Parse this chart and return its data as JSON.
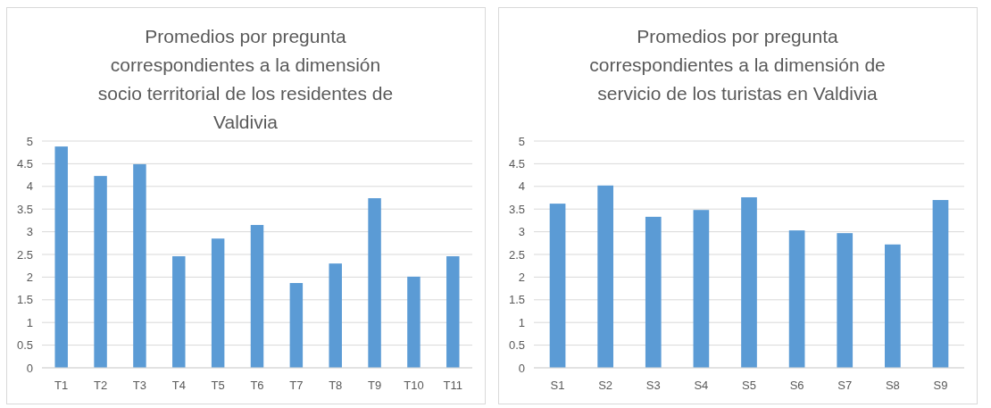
{
  "chart_data": [
    {
      "type": "bar",
      "title": "Promedios por pregunta correspondientes a la dimensión socio territorial de los residentes de Valdivia",
      "categories": [
        "T1",
        "T2",
        "T3",
        "T4",
        "T5",
        "T6",
        "T7",
        "T8",
        "T9",
        "T10",
        "T11"
      ],
      "values": [
        4.88,
        4.23,
        4.49,
        2.46,
        2.85,
        3.15,
        1.87,
        2.3,
        3.74,
        2.01,
        2.46
      ],
      "color": "#5b9bd5",
      "ylim": [
        0,
        5
      ],
      "yticks": [
        0,
        0.5,
        1,
        1.5,
        2,
        2.5,
        3,
        3.5,
        4,
        4.5,
        5
      ],
      "grid": "y"
    },
    {
      "type": "bar",
      "title": "Promedios por pregunta correspondientes a la dimensión de servicio de los turistas en Valdivia",
      "categories": [
        "S1",
        "S2",
        "S3",
        "S4",
        "S5",
        "S6",
        "S7",
        "S8",
        "S9"
      ],
      "values": [
        3.62,
        4.02,
        3.33,
        3.48,
        3.76,
        3.03,
        2.97,
        2.72,
        3.7
      ],
      "color": "#5b9bd5",
      "ylim": [
        0,
        5
      ],
      "yticks": [
        0,
        0.5,
        1,
        1.5,
        2,
        2.5,
        3,
        3.5,
        4,
        4.5,
        5
      ],
      "grid": "y"
    }
  ]
}
